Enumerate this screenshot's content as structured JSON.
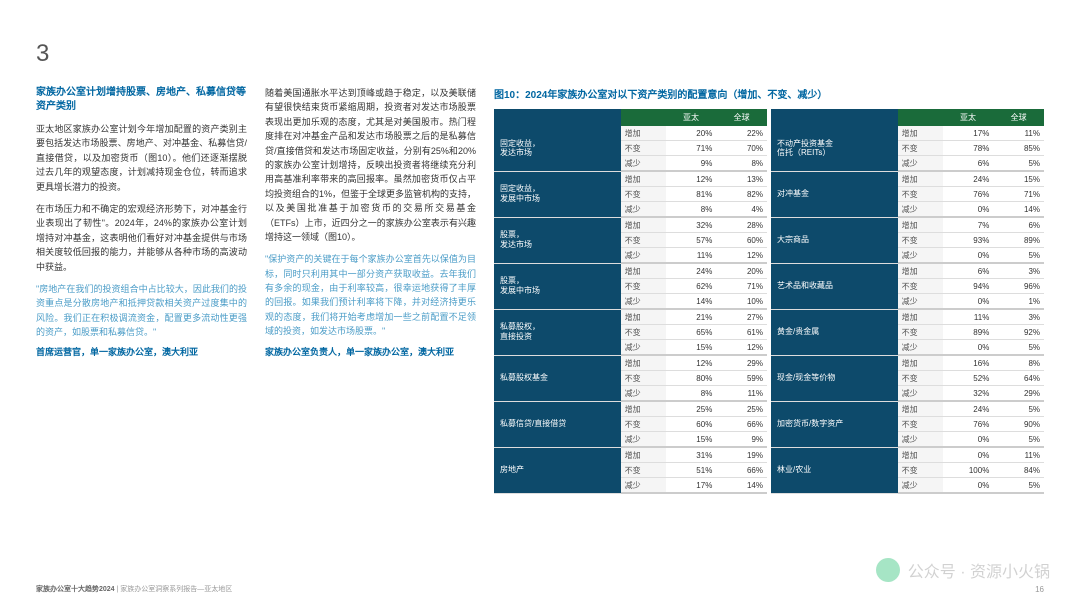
{
  "pageNumber": "3",
  "subtitle": "家族办公室计划增持股票、房地产、私募信贷等资产类别",
  "col1": {
    "p1": "亚太地区家族办公室计划今年增加配置的资产类别主要包括发达市场股票、房地产、对冲基金、私募信贷/直接借贷，以及加密货币（图10）。他们还逐渐摆脱过去几年的观望态度，计划减持现金仓位，转而追求更具增长潜力的投资。",
    "p2": "在市场压力和不确定的宏观经济形势下，对冲基金行业表现出了韧性\"。2024年，24%的家族办公室计划增持对冲基金，这表明他们看好对冲基金提供与市场相关度较低回报的能力，并能够从各种市场的高波动中获益。",
    "quote": "\"房地产在我们的投资组合中占比较大，因此我们的投资重点是分散房地产和抵押贷款相关资产过度集中的风险。我们正在积极调流资金，配置更多流动性更强的资产，如股票和私募信贷。\"",
    "author": "首席运营官，单一家族办公室，澳大利亚"
  },
  "col2": {
    "p1": "随着美国通胀水平达到顶峰或趋于稳定，以及美联储有望很快结束货币紧缩周期，投资者对发达市场股票表现出更加乐观的态度，尤其是对美国股市。热门程度排在对冲基金产品和发达市场股票之后的是私募信贷/直接借贷和发达市场固定收益，分别有25%和20%的家族办公室计划增持，反映出投资者将继续充分利用高基准利率带来的高回报率。虽然加密货币仅占平均投资组合的1%，但鉴于全球更多监管机构的支持，以及美国批准基于加密货币的交易所交易基金（ETFs）上市，近四分之一的家族办公室表示有兴趣增持这一领域（图10）。",
    "quote": "\"保护资产的关键在于每个家族办公室首先以保值为目标，同时只利用其中一部分资产获取收益。去年我们有多余的现金，由于利率较高，很幸运地获得了丰厚的回报。如果我们预计利率将下降，并对经济持更乐观的态度，我们将开始考虑增加一些之前配置不足领域的投资，如发达市场股票。\"",
    "author": "家族办公室负责人，单一家族办公室，澳大利亚"
  },
  "figTitle": "图10：2024年家族办公室对以下资产类别的配置意向（增加、不变、减少）",
  "headers": {
    "h1": "亚太",
    "h2": "全球"
  },
  "metrics": [
    "增加",
    "不变",
    "减少"
  ],
  "table1": [
    {
      "cat": "固定收益，\n发达市场",
      "rows": [
        [
          "20%",
          "22%"
        ],
        [
          "71%",
          "70%"
        ],
        [
          "9%",
          "8%"
        ]
      ]
    },
    {
      "cat": "固定收益，\n发展中市场",
      "rows": [
        [
          "12%",
          "13%"
        ],
        [
          "81%",
          "82%"
        ],
        [
          "8%",
          "4%"
        ]
      ]
    },
    {
      "cat": "股票，\n发达市场",
      "rows": [
        [
          "32%",
          "28%"
        ],
        [
          "57%",
          "60%"
        ],
        [
          "11%",
          "12%"
        ]
      ]
    },
    {
      "cat": "股票，\n发展中市场",
      "rows": [
        [
          "24%",
          "20%"
        ],
        [
          "62%",
          "71%"
        ],
        [
          "14%",
          "10%"
        ]
      ]
    },
    {
      "cat": "私募股权，\n直接投资",
      "rows": [
        [
          "21%",
          "27%"
        ],
        [
          "65%",
          "61%"
        ],
        [
          "15%",
          "12%"
        ]
      ]
    },
    {
      "cat": "私募股权基金",
      "rows": [
        [
          "12%",
          "29%"
        ],
        [
          "80%",
          "59%"
        ],
        [
          "8%",
          "11%"
        ]
      ]
    },
    {
      "cat": "私募信贷/直接借贷",
      "rows": [
        [
          "25%",
          "25%"
        ],
        [
          "60%",
          "66%"
        ],
        [
          "15%",
          "9%"
        ]
      ]
    },
    {
      "cat": "房地产",
      "rows": [
        [
          "31%",
          "19%"
        ],
        [
          "51%",
          "66%"
        ],
        [
          "17%",
          "14%"
        ]
      ]
    }
  ],
  "table2": [
    {
      "cat": "不动产投资基金\n信托（REITs）",
      "rows": [
        [
          "17%",
          "11%"
        ],
        [
          "78%",
          "85%"
        ],
        [
          "6%",
          "5%"
        ]
      ]
    },
    {
      "cat": "对冲基金",
      "rows": [
        [
          "24%",
          "15%"
        ],
        [
          "76%",
          "71%"
        ],
        [
          "0%",
          "14%"
        ]
      ]
    },
    {
      "cat": "大宗商品",
      "rows": [
        [
          "7%",
          "6%"
        ],
        [
          "93%",
          "89%"
        ],
        [
          "0%",
          "5%"
        ]
      ]
    },
    {
      "cat": "艺术品和收藏品",
      "rows": [
        [
          "6%",
          "3%"
        ],
        [
          "94%",
          "96%"
        ],
        [
          "0%",
          "1%"
        ]
      ]
    },
    {
      "cat": "黄金/贵金属",
      "rows": [
        [
          "11%",
          "3%"
        ],
        [
          "89%",
          "92%"
        ],
        [
          "0%",
          "5%"
        ]
      ]
    },
    {
      "cat": "现金/现金等价物",
      "rows": [
        [
          "16%",
          "8%"
        ],
        [
          "52%",
          "64%"
        ],
        [
          "32%",
          "29%"
        ]
      ]
    },
    {
      "cat": "加密货币/数字资产",
      "rows": [
        [
          "24%",
          "5%"
        ],
        [
          "76%",
          "90%"
        ],
        [
          "0%",
          "5%"
        ]
      ]
    },
    {
      "cat": "林业/农业",
      "rows": [
        [
          "0%",
          "11%"
        ],
        [
          "100%",
          "84%"
        ],
        [
          "0%",
          "5%"
        ]
      ]
    }
  ],
  "footer": {
    "bold": "家族办公室十大趋势2024",
    "rest": " | 家族办公室洞察系列报告—亚太地区"
  },
  "bottomPageNum": "16",
  "watermark": "公众号 · 资源小火锅"
}
